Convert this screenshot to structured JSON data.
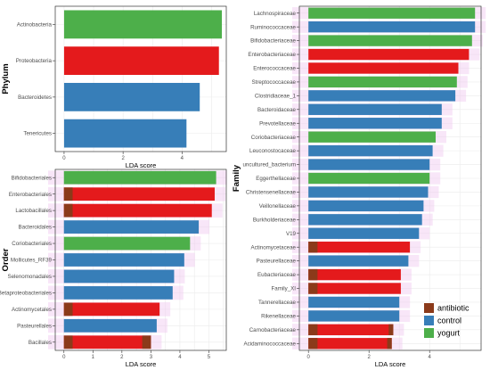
{
  "colors": {
    "antibiotic": "#8B3A1A",
    "antibiotic_overlay": "#E41A1C",
    "control": "#377EB8",
    "yogurt": "#4DAF4A",
    "grid": "#ebebeb",
    "panel_border": "#333333",
    "cat_shade": "#f0c8f0"
  },
  "chart_data": [
    {
      "id": "phylum",
      "type": "bar",
      "orientation": "horizontal",
      "title": "",
      "xlabel": "LDA score",
      "ylabel": "Phylum",
      "xlim": [
        -0.3,
        5.5
      ],
      "xticks": [
        0,
        2,
        4
      ],
      "xtick_labels": [
        "0",
        "2",
        "4"
      ],
      "grid": true,
      "categories": [
        "Actinobacteria",
        "Proteobacteria",
        "Bacteroidetes",
        "Tenericutes"
      ],
      "values": [
        5.35,
        5.25,
        4.6,
        4.15
      ],
      "groups": [
        "yogurt",
        "antibiotic",
        "control",
        "control"
      ],
      "dark_segment_end": [
        null,
        null,
        null,
        null
      ]
    },
    {
      "id": "order",
      "type": "bar",
      "orientation": "horizontal",
      "title": "",
      "xlabel": "LDA score",
      "ylabel": "Order",
      "xlim": [
        -0.3,
        5.6
      ],
      "xticks": [
        0,
        1,
        2,
        3,
        4,
        5
      ],
      "xtick_labels": [
        "0",
        "1",
        "2",
        "3",
        "4",
        "5"
      ],
      "grid": true,
      "categories": [
        "Bifidobacteriales",
        "Enterobacteriales",
        "Lactobacillales",
        "Bacteroidales",
        "Coriobacteriales",
        "Mollicutes_RF39",
        "Selenomonadales",
        "Betaproteobacteriales",
        "Actinomycetales",
        "Pasteurellales",
        "Bacillales"
      ],
      "values": [
        5.25,
        5.2,
        5.1,
        4.65,
        4.35,
        4.15,
        3.8,
        3.75,
        3.3,
        3.2,
        3.0
      ],
      "groups": [
        "yogurt",
        "antibiotic",
        "antibiotic",
        "control",
        "yogurt",
        "control",
        "control",
        "control",
        "antibiotic",
        "control",
        "antibiotic"
      ],
      "dark_segment_end": [
        null,
        0.3,
        0.3,
        null,
        null,
        null,
        null,
        null,
        0.3,
        null,
        2.7
      ]
    },
    {
      "id": "family",
      "type": "bar",
      "orientation": "horizontal",
      "title": "",
      "xlabel": "LDA score",
      "ylabel": "Family",
      "xlim": [
        -0.3,
        5.7
      ],
      "xticks": [
        0,
        2,
        4
      ],
      "xtick_labels": [
        "0",
        "2",
        "4"
      ],
      "grid": true,
      "categories": [
        "Lachnospiraceae",
        "Ruminococcaceae",
        "Bifidobacteriaceae",
        "Enterobacteriaceae",
        "Enterococcaceae",
        "Streptococcaceae",
        "Clostridiaceae_1",
        "Bacteroidaceae",
        "Prevotellaceae",
        "Coriobacteriaceae",
        "Leuconostocaceae",
        "uncultured_bacterium",
        "Eggerthellaceae",
        "Christensenellaceae",
        "Veillonellaceae",
        "Burkholderiaceae",
        "V19",
        "Actinomycetaceae",
        "Pasteurellaceae",
        "Eubacteriaceae",
        "Family_XI",
        "Tannerellaceae",
        "Rikenellaceae",
        "Carnobacteriaceae",
        "Acidaminococcaceae"
      ],
      "values": [
        5.5,
        5.5,
        5.4,
        5.3,
        4.95,
        4.9,
        4.85,
        4.4,
        4.4,
        4.2,
        4.1,
        4.0,
        4.0,
        3.95,
        3.8,
        3.75,
        3.65,
        3.35,
        3.3,
        3.05,
        3.05,
        3.0,
        3.0,
        2.8,
        2.75
      ],
      "groups": [
        "yogurt",
        "control",
        "yogurt",
        "antibiotic",
        "antibiotic",
        "yogurt",
        "control",
        "control",
        "control",
        "yogurt",
        "control",
        "control",
        "yogurt",
        "control",
        "control",
        "control",
        "control",
        "antibiotic",
        "control",
        "antibiotic",
        "antibiotic",
        "control",
        "control",
        "antibiotic",
        "antibiotic"
      ],
      "dark_segment_end": [
        null,
        null,
        null,
        null,
        null,
        null,
        null,
        null,
        null,
        null,
        null,
        null,
        null,
        null,
        null,
        null,
        null,
        0.3,
        null,
        0.3,
        0.3,
        null,
        null,
        2.65,
        2.6
      ]
    }
  ],
  "legend": {
    "placement": "bottom-right",
    "items": [
      {
        "key": "antibiotic",
        "label": "antibiotic"
      },
      {
        "key": "control",
        "label": "control"
      },
      {
        "key": "yogurt",
        "label": "yogurt"
      }
    ]
  }
}
